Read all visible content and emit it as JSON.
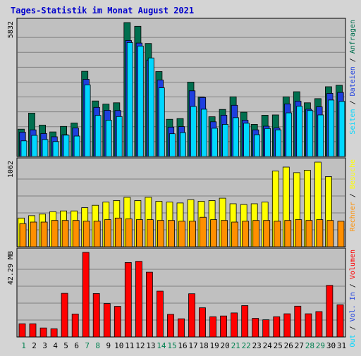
{
  "title": "Tages-Statistik im Monat August 2021",
  "chart_data": [
    {
      "type": "bar",
      "panel": "requests",
      "ymax_label": "5832",
      "ylim": [
        0,
        5832
      ],
      "legend": [
        {
          "label": "Anfragen",
          "color": "#006f4f"
        },
        {
          "label": "Dateien",
          "color": "#1e3fdf"
        },
        {
          "label": "Seiten",
          "color": "#00d7ff"
        }
      ],
      "categories": [
        "1",
        "2",
        "3",
        "4",
        "5",
        "6",
        "7",
        "8",
        "9",
        "10",
        "11",
        "12",
        "13",
        "14",
        "15",
        "16",
        "17",
        "18",
        "19",
        "20",
        "21",
        "22",
        "23",
        "24",
        "25",
        "26",
        "27",
        "28",
        "29",
        "30",
        "31"
      ],
      "series": [
        {
          "name": "Anfragen",
          "values": [
            1190,
            1890,
            1370,
            1070,
            1310,
            1460,
            3710,
            2420,
            2280,
            2340,
            5832,
            5670,
            4920,
            3700,
            1620,
            1650,
            3240,
            2590,
            1730,
            2050,
            2600,
            1930,
            1400,
            1800,
            1810,
            2600,
            2820,
            2340,
            2520,
            3040,
            3100
          ]
        },
        {
          "name": "Dateien",
          "values": [
            1060,
            1160,
            1000,
            860,
            950,
            1240,
            3360,
            2140,
            2010,
            2000,
            5050,
            4940,
            4200,
            3330,
            1280,
            1300,
            2860,
            2570,
            1510,
            1800,
            2230,
            1580,
            1160,
            1320,
            1240,
            2290,
            2410,
            2060,
            2160,
            2750,
            2790
          ]
        },
        {
          "name": "Seiten",
          "values": [
            680,
            920,
            740,
            650,
            930,
            890,
            3120,
            1790,
            1580,
            1740,
            4960,
            4810,
            4290,
            2990,
            990,
            1040,
            2180,
            2060,
            1230,
            1400,
            1690,
            1450,
            950,
            1220,
            1160,
            1900,
            2190,
            2000,
            1810,
            2460,
            2400
          ]
        }
      ]
    },
    {
      "type": "bar",
      "panel": "visits",
      "ymax_label": "1062",
      "ylim": [
        0,
        1062
      ],
      "legend": [
        {
          "label": "Besuche",
          "color": "#ffff00"
        },
        {
          "label": "Rechner",
          "color": "#ff8f00"
        }
      ],
      "categories": [
        "1",
        "2",
        "3",
        "4",
        "5",
        "6",
        "7",
        "8",
        "9",
        "10",
        "11",
        "12",
        "13",
        "14",
        "15",
        "16",
        "17",
        "18",
        "19",
        "20",
        "21",
        "22",
        "23",
        "24",
        "25",
        "26",
        "27",
        "28",
        "29",
        "30",
        "31"
      ],
      "series": [
        {
          "name": "Besuche",
          "values": [
            360,
            390,
            410,
            440,
            450,
            450,
            490,
            520,
            560,
            580,
            620,
            580,
            620,
            570,
            560,
            550,
            590,
            570,
            580,
            610,
            540,
            530,
            540,
            560,
            950,
            1000,
            930,
            960,
            1062,
            880,
            0
          ]
        },
        {
          "name": "Rechner",
          "values": [
            290,
            310,
            310,
            330,
            330,
            330,
            320,
            320,
            340,
            360,
            350,
            340,
            340,
            330,
            330,
            320,
            320,
            370,
            340,
            330,
            310,
            320,
            330,
            330,
            320,
            330,
            340,
            330,
            340,
            330,
            320
          ]
        }
      ]
    },
    {
      "type": "bar",
      "panel": "volume",
      "ymax_label": "42.29 MB",
      "ylim": [
        0,
        42.29
      ],
      "legend": [
        {
          "label": "Volumen",
          "color": "#ff0000"
        },
        {
          "label": "Vol. In",
          "color": "#1e3fdf"
        },
        {
          "label": "Vol. Out",
          "color": "#00d7ff"
        }
      ],
      "categories": [
        "1",
        "2",
        "3",
        "4",
        "5",
        "6",
        "7",
        "8",
        "9",
        "10",
        "11",
        "12",
        "13",
        "14",
        "15",
        "16",
        "17",
        "18",
        "19",
        "20",
        "21",
        "22",
        "23",
        "24",
        "25",
        "26",
        "27",
        "28",
        "29",
        "30",
        "31"
      ],
      "series": [
        {
          "name": "Volumen",
          "values": [
            6.6,
            6.6,
            4.5,
            4.1,
            21.8,
            11.5,
            42.29,
            21.7,
            16.7,
            15.3,
            37.2,
            37.8,
            32.4,
            22.9,
            11.3,
            9.1,
            21.6,
            14.6,
            10.1,
            10.5,
            12.0,
            15.7,
            9.3,
            8.6,
            10.1,
            11.6,
            15.4,
            11.6,
            12.7,
            25.8,
            16.1
          ]
        }
      ]
    }
  ],
  "weekend_days": [
    "1",
    "7",
    "8",
    "14",
    "15",
    "21",
    "22",
    "28",
    "29"
  ],
  "colors": {
    "background": "#d4d4d4",
    "plot_bg": "#c0c0c0",
    "grid": "#808080",
    "title": "#0000cc",
    "weekday": "#000000",
    "weekend": "#00804f",
    "bar_stroke": "#000000"
  },
  "separator": " / "
}
